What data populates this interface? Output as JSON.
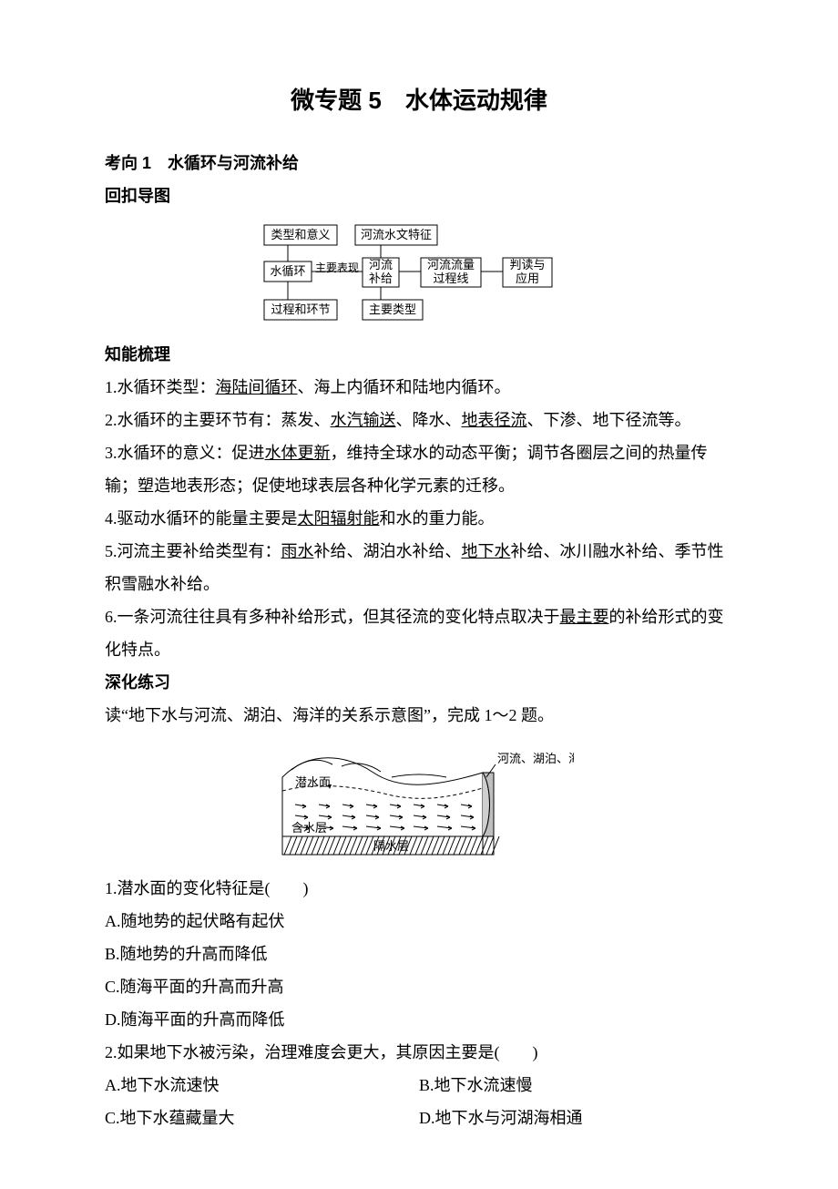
{
  "title_prefix": "微专题 5",
  "title_rest": "　水体运动规律",
  "sec1": "考向 1　水循环与河流补给",
  "sec2": "回扣导图",
  "diagram": {
    "n_type_meaning": "类型和意义",
    "n_hydro_feat": "河流水文特征",
    "n_cycle": "水循环",
    "e_main_expr": "主要表现",
    "n_river_supply_1": "河流",
    "n_river_supply_2": "补给",
    "n_flow_curve_1": "河流流量",
    "n_flow_curve_2": "过程线",
    "n_read_apply_1": "判读与",
    "n_read_apply_2": "应用",
    "n_process_link": "过程和环节",
    "n_main_type": "主要类型",
    "box_stroke": "#000000",
    "box_fill": "#ffffff",
    "line_stroke": "#000000",
    "font_size": 13
  },
  "sec3": "知能梳理",
  "p1_a": "1.水循环类型：",
  "p1_u": "海陆间循环",
  "p1_b": "、海上内循环和陆地内循环。",
  "p2_a": "2.水循环的主要环节有：蒸发、",
  "p2_u1": "水汽输送",
  "p2_b": "、降水、",
  "p2_u2": "地表径流",
  "p2_c": "、下渗、地下径流等。",
  "p3_a": "3.水循环的意义：促进",
  "p3_u": "水体更新",
  "p3_b": "，维持全球水的动态平衡；调节各圈层之间的热量传输；塑造地表形态；促使地球表层各种化学元素的迁移。",
  "p4_a": "4.驱动水循环的能量主要是",
  "p4_u": "太阳辐射能",
  "p4_b": "和水的重力能。",
  "p5_a": "5.河流主要补给类型有：",
  "p5_u1": "雨水",
  "p5_b": "补给、湖泊水补给、",
  "p5_u2": "地下水",
  "p5_c": "补给、冰川融水补给、季节性积雪融水补给。",
  "p6_a": "6.一条河流往往具有多种补给形式，但其径流的变化特点取决于",
  "p6_u": "最主要",
  "p6_b": "的补给形式的变化特点。",
  "sec4": "深化练习",
  "stem": "读“地下水与河流、湖泊、海洋的关系示意图”，完成 1～2 题。",
  "fig": {
    "label_water_table": "潜水面",
    "label_aquifer": "含水层",
    "label_imperm": "隔水层",
    "label_rlh": "河流、湖泊、海洋",
    "stroke": "#000000",
    "hatch": "#000000",
    "font_size": 13
  },
  "q1": "1.潜水面的变化特征是(　　)",
  "q1A": "A.随地势的起伏略有起伏",
  "q1B": "B.随地势的升高而降低",
  "q1C": "C.随海平面的升高而升高",
  "q1D": "D.随海平面的升高而降低",
  "q2": "2.如果地下水被污染，治理难度会更大，其原因主要是(　　)",
  "q2A": "A.地下水流速快",
  "q2B": "B.地下水流速慢",
  "q2C": "C.地下水蕴藏量大",
  "q2D": "D.地下水与河湖海相通"
}
